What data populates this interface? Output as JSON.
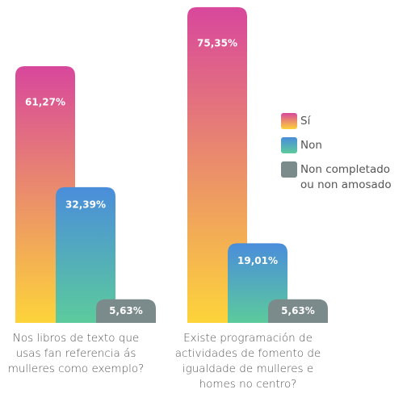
{
  "chart_data": {
    "type": "bar",
    "categories": [
      "Nos libros de texto que\nusas fan referencia ás\nmulleres como exemplo?",
      "Existe programación de\nactividades de fomento de\nigualdade de mulleres e\nhomes no centro?"
    ],
    "series": [
      {
        "name": "Sí",
        "color": "#d8479c",
        "gradient_end": "#fdd43a",
        "values": [
          61.27,
          75.35
        ],
        "value_labels": [
          "61,27%",
          "75,35%"
        ]
      },
      {
        "name": "Non",
        "color": "#4a8ddb",
        "gradient_end": "#5ccb9c",
        "values": [
          32.39,
          19.01
        ],
        "value_labels": [
          "32,39%",
          "19,01%"
        ]
      },
      {
        "name": "Non completado\nou non amosado",
        "color": "#7b8a8a",
        "gradient_end": "#7b8a8a",
        "values": [
          5.63,
          5.63
        ],
        "value_labels": [
          "5,63%",
          "5,63%"
        ]
      }
    ],
    "legend": "right"
  }
}
